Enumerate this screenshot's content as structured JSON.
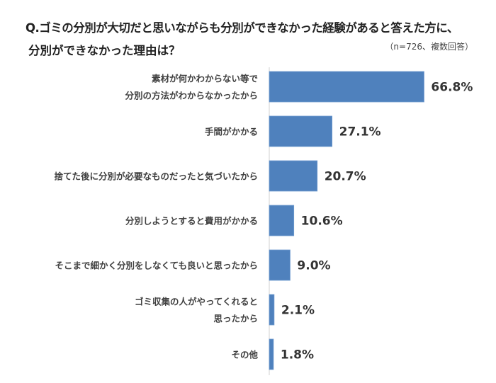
{
  "chart_data": {
    "type": "bar",
    "orientation": "horizontal",
    "title": "Q.ゴミの分別が大切だと思いながらも分別ができなかった経験があると答えた方に、",
    "subtitle": "分別ができなかった理由は？",
    "note": "（n=726、複数回答）",
    "categories": [
      [
        "素材が何かわからない等で",
        "分別の方法がわからなかったから"
      ],
      [
        "手間がかかる"
      ],
      [
        "捨てた後に分別が必要なものだったと気づいたから"
      ],
      [
        "分別しようとすると費用がかかる"
      ],
      [
        "そこまで細かく分別をしなくても良いと思ったから"
      ],
      [
        "ゴミ収集の人がやってくれると",
        "思ったから"
      ],
      [
        "その他"
      ]
    ],
    "values": [
      66.8,
      27.1,
      20.7,
      10.6,
      9.0,
      2.1,
      1.8
    ],
    "labels": [
      "66.8%",
      "27.1%",
      "20.7%",
      "10.6%",
      "9.0%",
      "2.1%",
      "1.8%"
    ],
    "unit": "%",
    "xlim": [
      0,
      100
    ],
    "grid": false,
    "legend": "none",
    "bar_color": "#4F81BD"
  }
}
